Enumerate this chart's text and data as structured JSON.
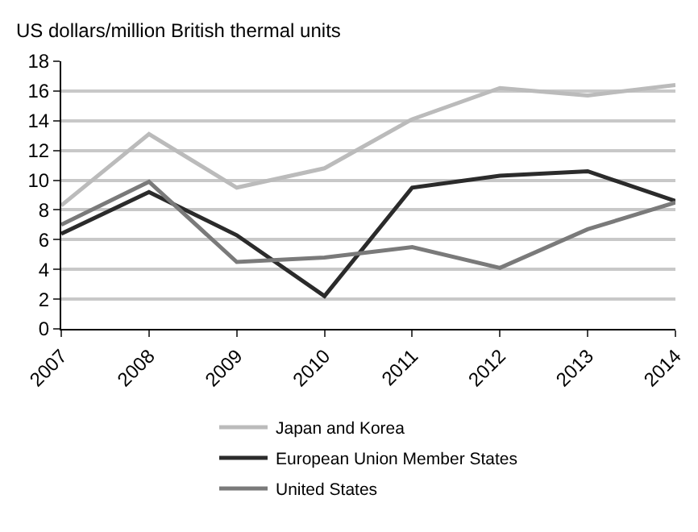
{
  "chart_data": {
    "type": "line",
    "ylabel": "US dollars/million British thermal units",
    "x": [
      2007,
      2008,
      2009,
      2010,
      2011,
      2012,
      2013,
      2014
    ],
    "xlim": [
      2007,
      2014
    ],
    "xticks": [
      2007,
      2008,
      2009,
      2010,
      2011,
      2012,
      2013,
      2014
    ],
    "ylim": [
      0,
      18
    ],
    "yticks": [
      0,
      2,
      4,
      6,
      8,
      10,
      12,
      14,
      16,
      18
    ],
    "series": [
      {
        "name": "Japan and Korea",
        "color": "#bbbbbb",
        "values": [
          8.3,
          13.1,
          9.5,
          10.8,
          14.1,
          16.2,
          15.7,
          16.4
        ]
      },
      {
        "name": "European Union Member States",
        "color": "#2b2b2b",
        "values": [
          6.4,
          9.2,
          6.3,
          2.2,
          9.5,
          10.3,
          10.6,
          8.6
        ]
      },
      {
        "name": "United States",
        "color": "#7a7a7a",
        "values": [
          7.0,
          9.9,
          4.5,
          4.8,
          5.5,
          4.1,
          6.7,
          8.5
        ]
      }
    ],
    "grid": "y",
    "legend": "bottom",
    "marker": "none",
    "line_style": "solid"
  }
}
